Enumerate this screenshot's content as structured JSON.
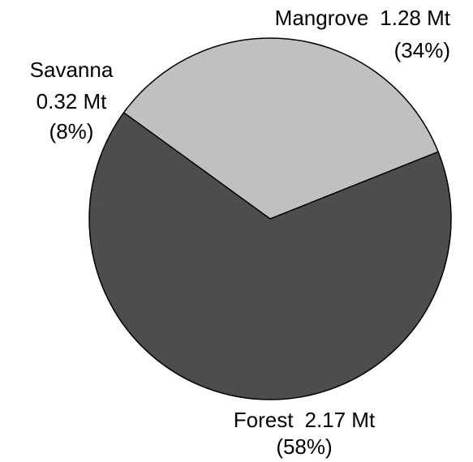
{
  "chart_data": {
    "type": "pie",
    "categories": [
      "Mangrove",
      "Forest",
      "Savanna"
    ],
    "values": [
      1.28,
      2.17,
      0.32
    ],
    "value_labels": [
      "1.28 Mt",
      "2.17 Mt",
      "0.32 Mt"
    ],
    "percent_labels": [
      "(34%)",
      "(58%)",
      "(8%)"
    ],
    "colors": [
      "#c0c0c0",
      "#4d4d4d",
      "#4d4d4d"
    ]
  }
}
